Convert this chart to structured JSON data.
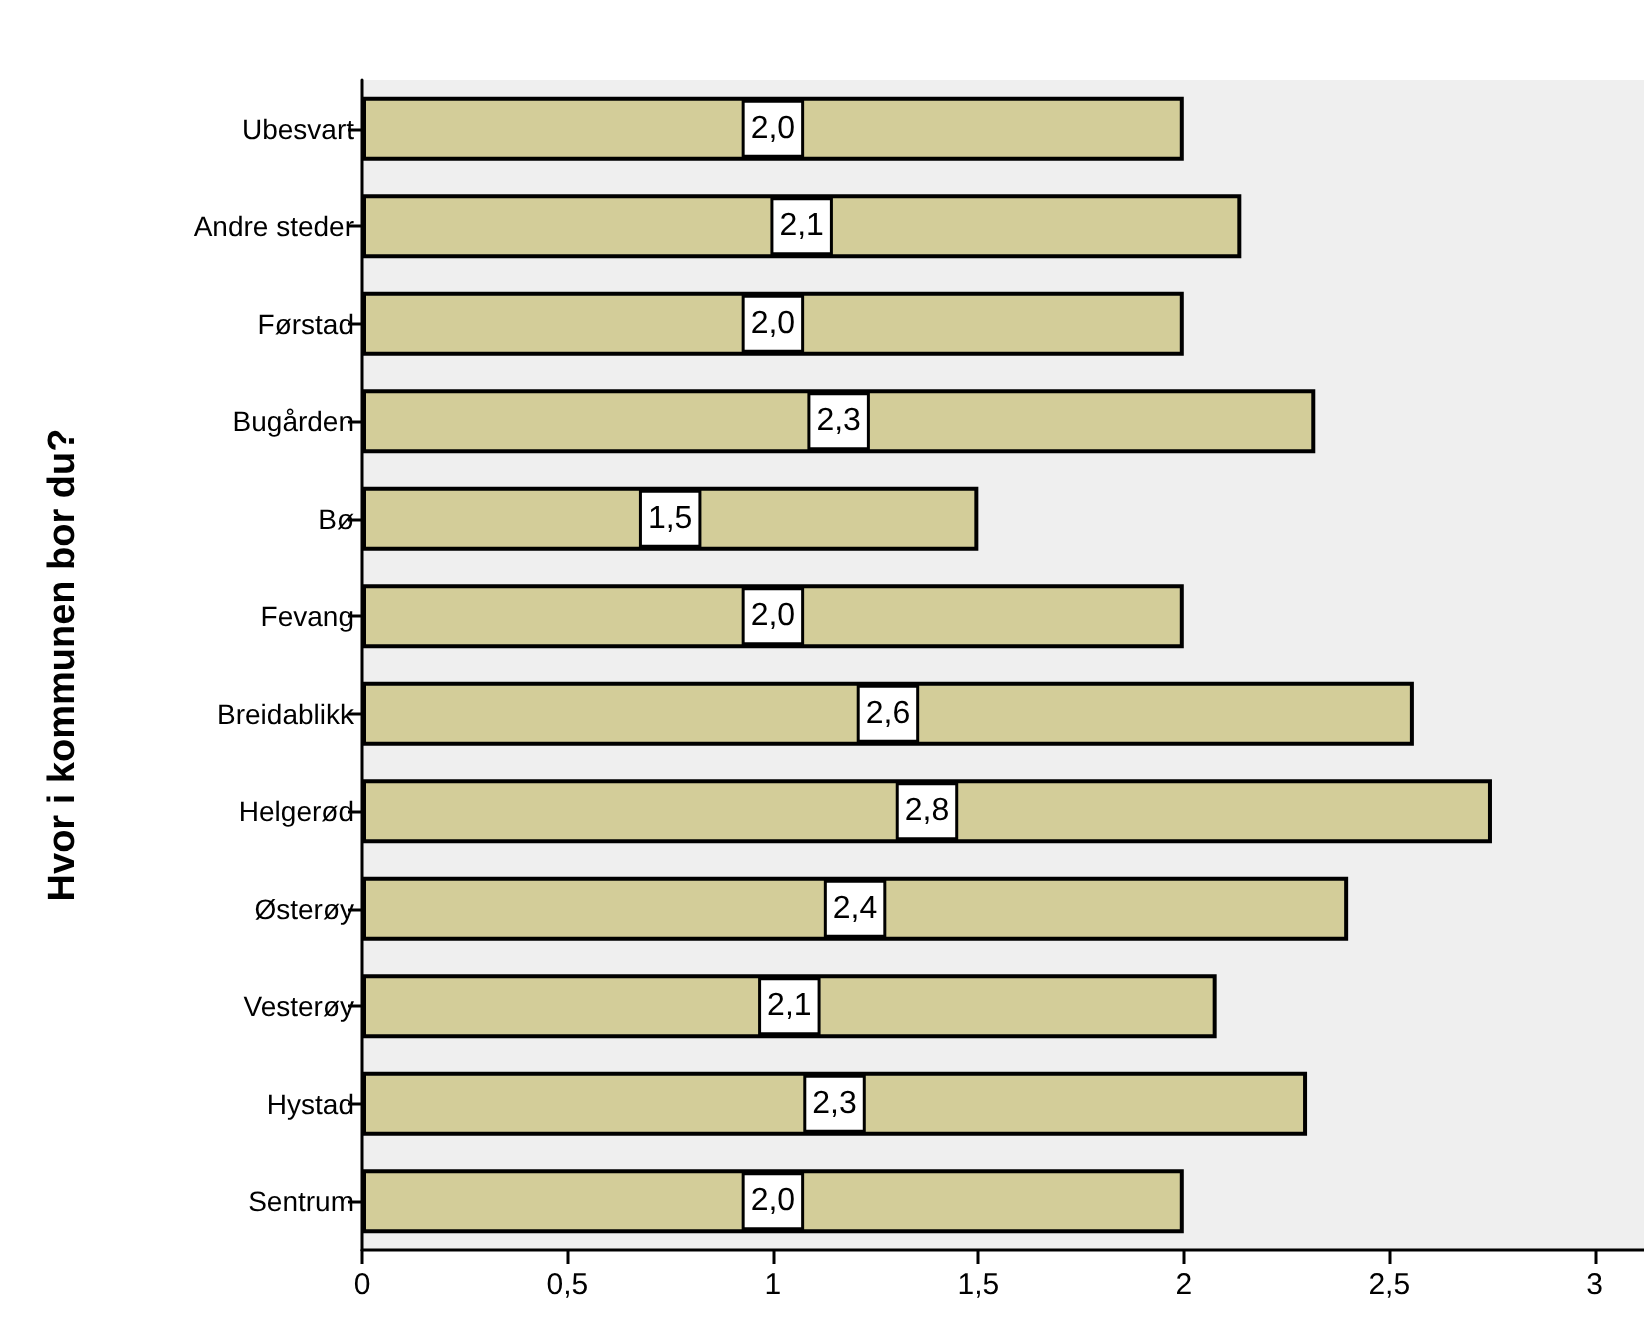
{
  "chart_data": {
    "type": "bar",
    "orientation": "horizontal",
    "ylabel": "Hvor i kommunen bor du?",
    "categories": [
      "Ubesvart",
      "Andre steder",
      "Førstad",
      "Bugården",
      "Bø",
      "Fevang",
      "Breidablikk",
      "Helgerød",
      "Østerøy",
      "Vesterøy",
      "Hystad",
      "Sentrum"
    ],
    "values": [
      2.0,
      2.14,
      2.0,
      2.32,
      1.5,
      2.0,
      2.56,
      2.75,
      2.4,
      2.08,
      2.3,
      2.0
    ],
    "value_labels": [
      "2,0",
      "2,1",
      "2,0",
      "2,3",
      "1,5",
      "2,0",
      "2,6",
      "2,8",
      "2,4",
      "2,1",
      "2,3",
      "2,0"
    ],
    "color": "#d3cd99",
    "xlim": [
      0,
      3.12
    ],
    "xticks": [
      0,
      {
        "value": 0.5,
        "label": "0,5"
      },
      1,
      {
        "value": 1.5,
        "label": "1,5"
      },
      2,
      {
        "value": 2.5,
        "label": "2,5"
      },
      3
    ],
    "grid": false
  }
}
